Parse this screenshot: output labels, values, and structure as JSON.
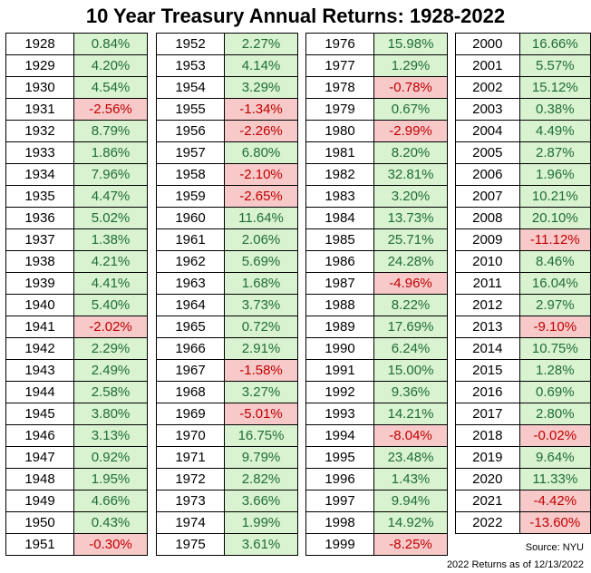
{
  "title": "10 Year Treasury Annual Returns: 1928-2022",
  "source": "Source: NYU",
  "note": "2022 Returns as of 12/13/2022",
  "colors": {
    "positive_bg": "#d9f2d0",
    "positive_text": "#1f6e35",
    "negative_bg": "#f7c9c9",
    "negative_text": "#c00000"
  },
  "chart_data": {
    "type": "table",
    "title": "10 Year Treasury Annual Returns: 1928-2022",
    "columns": [
      [
        [
          "1928",
          "0.84%"
        ],
        [
          "1929",
          "4.20%"
        ],
        [
          "1930",
          "4.54%"
        ],
        [
          "1931",
          "-2.56%"
        ],
        [
          "1932",
          "8.79%"
        ],
        [
          "1933",
          "1.86%"
        ],
        [
          "1934",
          "7.96%"
        ],
        [
          "1935",
          "4.47%"
        ],
        [
          "1936",
          "5.02%"
        ],
        [
          "1937",
          "1.38%"
        ],
        [
          "1938",
          "4.21%"
        ],
        [
          "1939",
          "4.41%"
        ],
        [
          "1940",
          "5.40%"
        ],
        [
          "1941",
          "-2.02%"
        ],
        [
          "1942",
          "2.29%"
        ],
        [
          "1943",
          "2.49%"
        ],
        [
          "1944",
          "2.58%"
        ],
        [
          "1945",
          "3.80%"
        ],
        [
          "1946",
          "3.13%"
        ],
        [
          "1947",
          "0.92%"
        ],
        [
          "1948",
          "1.95%"
        ],
        [
          "1949",
          "4.66%"
        ],
        [
          "1950",
          "0.43%"
        ],
        [
          "1951",
          "-0.30%"
        ]
      ],
      [
        [
          "1952",
          "2.27%"
        ],
        [
          "1953",
          "4.14%"
        ],
        [
          "1954",
          "3.29%"
        ],
        [
          "1955",
          "-1.34%"
        ],
        [
          "1956",
          "-2.26%"
        ],
        [
          "1957",
          "6.80%"
        ],
        [
          "1958",
          "-2.10%"
        ],
        [
          "1959",
          "-2.65%"
        ],
        [
          "1960",
          "11.64%"
        ],
        [
          "1961",
          "2.06%"
        ],
        [
          "1962",
          "5.69%"
        ],
        [
          "1963",
          "1.68%"
        ],
        [
          "1964",
          "3.73%"
        ],
        [
          "1965",
          "0.72%"
        ],
        [
          "1966",
          "2.91%"
        ],
        [
          "1967",
          "-1.58%"
        ],
        [
          "1968",
          "3.27%"
        ],
        [
          "1969",
          "-5.01%"
        ],
        [
          "1970",
          "16.75%"
        ],
        [
          "1971",
          "9.79%"
        ],
        [
          "1972",
          "2.82%"
        ],
        [
          "1973",
          "3.66%"
        ],
        [
          "1974",
          "1.99%"
        ],
        [
          "1975",
          "3.61%"
        ]
      ],
      [
        [
          "1976",
          "15.98%"
        ],
        [
          "1977",
          "1.29%"
        ],
        [
          "1978",
          "-0.78%"
        ],
        [
          "1979",
          "0.67%"
        ],
        [
          "1980",
          "-2.99%"
        ],
        [
          "1981",
          "8.20%"
        ],
        [
          "1982",
          "32.81%"
        ],
        [
          "1983",
          "3.20%"
        ],
        [
          "1984",
          "13.73%"
        ],
        [
          "1985",
          "25.71%"
        ],
        [
          "1986",
          "24.28%"
        ],
        [
          "1987",
          "-4.96%"
        ],
        [
          "1988",
          "8.22%"
        ],
        [
          "1989",
          "17.69%"
        ],
        [
          "1990",
          "6.24%"
        ],
        [
          "1991",
          "15.00%"
        ],
        [
          "1992",
          "9.36%"
        ],
        [
          "1993",
          "14.21%"
        ],
        [
          "1994",
          "-8.04%"
        ],
        [
          "1995",
          "23.48%"
        ],
        [
          "1996",
          "1.43%"
        ],
        [
          "1997",
          "9.94%"
        ],
        [
          "1998",
          "14.92%"
        ],
        [
          "1999",
          "-8.25%"
        ]
      ],
      [
        [
          "2000",
          "16.66%"
        ],
        [
          "2001",
          "5.57%"
        ],
        [
          "2002",
          "15.12%"
        ],
        [
          "2003",
          "0.38%"
        ],
        [
          "2004",
          "4.49%"
        ],
        [
          "2005",
          "2.87%"
        ],
        [
          "2006",
          "1.96%"
        ],
        [
          "2007",
          "10.21%"
        ],
        [
          "2008",
          "20.10%"
        ],
        [
          "2009",
          "-11.12%"
        ],
        [
          "2010",
          "8.46%"
        ],
        [
          "2011",
          "16.04%"
        ],
        [
          "2012",
          "2.97%"
        ],
        [
          "2013",
          "-9.10%"
        ],
        [
          "2014",
          "10.75%"
        ],
        [
          "2015",
          "1.28%"
        ],
        [
          "2016",
          "0.69%"
        ],
        [
          "2017",
          "2.80%"
        ],
        [
          "2018",
          "-0.02%"
        ],
        [
          "2019",
          "9.64%"
        ],
        [
          "2020",
          "11.33%"
        ],
        [
          "2021",
          "-4.42%"
        ],
        [
          "2022",
          "-13.60%"
        ]
      ]
    ]
  }
}
